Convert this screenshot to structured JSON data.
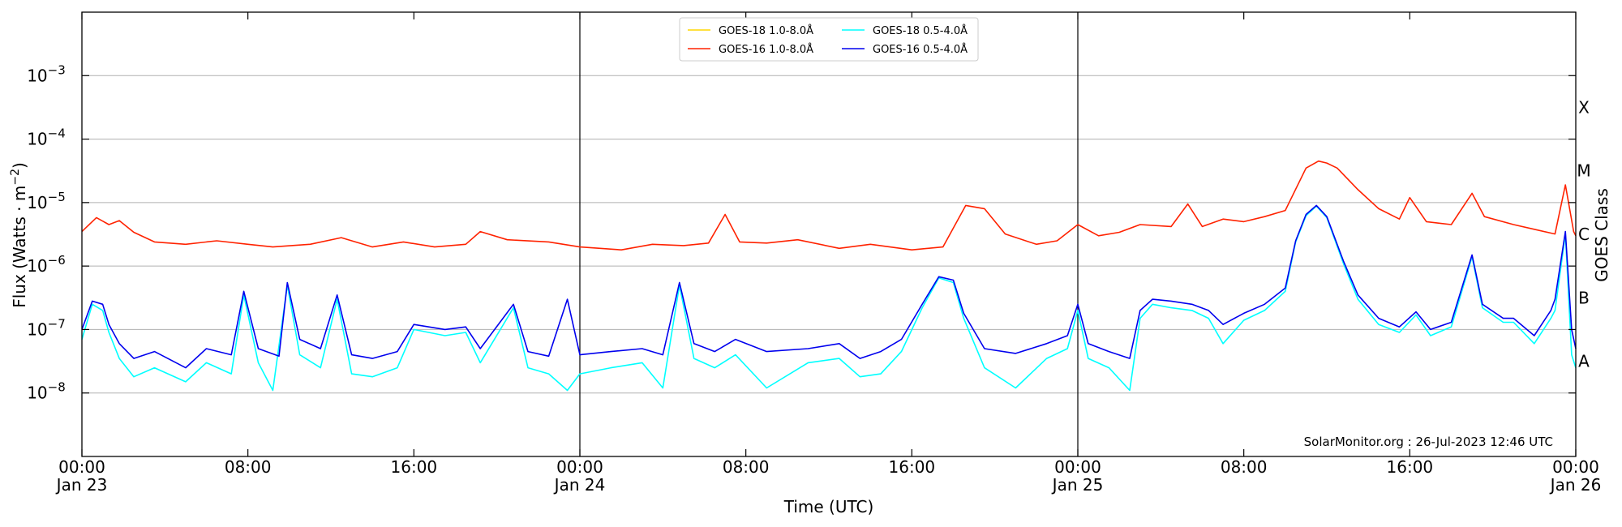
{
  "chart_data": {
    "type": "line",
    "xlabel": "Time (UTC)",
    "ylabel_base": "Flux (Watts · m",
    "ylabel_exp": "−2",
    "ylabel_close": ")",
    "right_label": "GOES Class",
    "credit": "SolarMonitor.org : 26-Jul-2023 12:46 UTC",
    "yscale": "log",
    "x_range_hours": [
      0,
      72
    ],
    "ylim_exp": [
      -9,
      -2
    ],
    "y_ticks": [
      {
        "exp": -8,
        "base": "10",
        "sup": "−8"
      },
      {
        "exp": -7,
        "base": "10",
        "sup": "−7"
      },
      {
        "exp": -6,
        "base": "10",
        "sup": "−6"
      },
      {
        "exp": -5,
        "base": "10",
        "sup": "−5"
      },
      {
        "exp": -4,
        "base": "10",
        "sup": "−4"
      },
      {
        "exp": -3,
        "base": "10",
        "sup": "−3"
      }
    ],
    "x_ticks": [
      {
        "hour": 0,
        "line1": "00:00",
        "line2": "Jan 23"
      },
      {
        "hour": 8,
        "line1": "08:00",
        "line2": ""
      },
      {
        "hour": 16,
        "line1": "16:00",
        "line2": ""
      },
      {
        "hour": 24,
        "line1": "00:00",
        "line2": "Jan 24"
      },
      {
        "hour": 32,
        "line1": "08:00",
        "line2": ""
      },
      {
        "hour": 40,
        "line1": "16:00",
        "line2": ""
      },
      {
        "hour": 48,
        "line1": "00:00",
        "line2": "Jan 25"
      },
      {
        "hour": 56,
        "line1": "08:00",
        "line2": ""
      },
      {
        "hour": 64,
        "line1": "16:00",
        "line2": ""
      },
      {
        "hour": 72,
        "line1": "00:00",
        "line2": "Jan 26"
      }
    ],
    "day_boundaries_hours": [
      24,
      48
    ],
    "goes_classes": [
      {
        "label": "A",
        "exp": -7.5
      },
      {
        "label": "B",
        "exp": -6.5
      },
      {
        "label": "C",
        "exp": -5.5
      },
      {
        "label": "M",
        "exp": -4.5
      },
      {
        "label": "X",
        "exp": -3.5
      }
    ],
    "legend": {
      "position": "top-center",
      "entries": [
        {
          "name": "GOES-18 1.0-8.0Å",
          "color": "#ffd700"
        },
        {
          "name": "GOES-18 0.5-4.0Å",
          "color": "#00ffff"
        },
        {
          "name": "GOES-16 1.0-8.0Å",
          "color": "#ff2200"
        },
        {
          "name": "GOES-16 0.5-4.0Å",
          "color": "#0000ee"
        }
      ]
    },
    "series": [
      {
        "name": "GOES-16 1.0-8.0Å",
        "color": "#ff2200",
        "points": [
          [
            0,
            3.5e-06
          ],
          [
            0.7,
            5.8e-06
          ],
          [
            1.3,
            4.5e-06
          ],
          [
            1.8,
            5.2e-06
          ],
          [
            2.5,
            3.4e-06
          ],
          [
            3.5,
            2.4e-06
          ],
          [
            5,
            2.2e-06
          ],
          [
            6.5,
            2.5e-06
          ],
          [
            8,
            2.2e-06
          ],
          [
            9.2,
            2e-06
          ],
          [
            11,
            2.2e-06
          ],
          [
            12.5,
            2.8e-06
          ],
          [
            14,
            2e-06
          ],
          [
            15.5,
            2.4e-06
          ],
          [
            17,
            2e-06
          ],
          [
            18.5,
            2.2e-06
          ],
          [
            19.2,
            3.5e-06
          ],
          [
            20.5,
            2.6e-06
          ],
          [
            22.5,
            2.4e-06
          ],
          [
            24,
            2e-06
          ],
          [
            26,
            1.8e-06
          ],
          [
            27.5,
            2.2e-06
          ],
          [
            29,
            2.1e-06
          ],
          [
            30.2,
            2.3e-06
          ],
          [
            31.0,
            6.5e-06
          ],
          [
            31.7,
            2.4e-06
          ],
          [
            33,
            2.3e-06
          ],
          [
            34.5,
            2.6e-06
          ],
          [
            36.5,
            1.9e-06
          ],
          [
            38,
            2.2e-06
          ],
          [
            40,
            1.8e-06
          ],
          [
            41.5,
            2e-06
          ],
          [
            42.6,
            9e-06
          ],
          [
            43.5,
            8e-06
          ],
          [
            44.5,
            3.2e-06
          ],
          [
            46,
            2.2e-06
          ],
          [
            47,
            2.5e-06
          ],
          [
            48.0,
            4.5e-06
          ],
          [
            49,
            3e-06
          ],
          [
            50,
            3.4e-06
          ],
          [
            51,
            4.5e-06
          ],
          [
            52.5,
            4.2e-06
          ],
          [
            53.3,
            9.5e-06
          ],
          [
            54,
            4.2e-06
          ],
          [
            55,
            5.5e-06
          ],
          [
            56,
            5e-06
          ],
          [
            57,
            6e-06
          ],
          [
            58,
            7.5e-06
          ],
          [
            59,
            3.5e-05
          ],
          [
            59.6,
            4.5e-05
          ],
          [
            60,
            4.2e-05
          ],
          [
            60.5,
            3.5e-05
          ],
          [
            61.5,
            1.6e-05
          ],
          [
            62.5,
            8e-06
          ],
          [
            63.5,
            5.5e-06
          ],
          [
            64,
            1.2e-05
          ],
          [
            64.8,
            5e-06
          ],
          [
            66,
            4.5e-06
          ],
          [
            67,
            1.4e-05
          ],
          [
            67.6,
            6e-06
          ],
          [
            69,
            4.5e-06
          ],
          [
            70,
            3.8e-06
          ],
          [
            71,
            3.2e-06
          ],
          [
            71.5,
            1.9e-05
          ],
          [
            71.9,
            3.5e-06
          ],
          [
            72,
            3e-06
          ]
        ]
      },
      {
        "name": "GOES-16 0.5-4.0Å",
        "color": "#0000ee",
        "points": [
          [
            0,
            1e-07
          ],
          [
            0.5,
            2.8e-07
          ],
          [
            1,
            2.5e-07
          ],
          [
            1.3,
            1.2e-07
          ],
          [
            1.8,
            6e-08
          ],
          [
            2.5,
            3.5e-08
          ],
          [
            3.5,
            4.5e-08
          ],
          [
            5,
            2.5e-08
          ],
          [
            6,
            5e-08
          ],
          [
            7.2,
            4e-08
          ],
          [
            7.8,
            4e-07
          ],
          [
            8.5,
            5e-08
          ],
          [
            9.5,
            3.8e-08
          ],
          [
            9.9,
            5.5e-07
          ],
          [
            10.5,
            7e-08
          ],
          [
            11.5,
            5e-08
          ],
          [
            12.3,
            3.5e-07
          ],
          [
            13,
            4e-08
          ],
          [
            14,
            3.5e-08
          ],
          [
            15.2,
            4.5e-08
          ],
          [
            16,
            1.2e-07
          ],
          [
            17.5,
            1e-07
          ],
          [
            18.5,
            1.1e-07
          ],
          [
            19.2,
            5e-08
          ],
          [
            20.8,
            2.5e-07
          ],
          [
            21.5,
            4.5e-08
          ],
          [
            22.5,
            3.8e-08
          ],
          [
            23.4,
            3e-07
          ],
          [
            24,
            4e-08
          ],
          [
            25.5,
            4.5e-08
          ],
          [
            27,
            5e-08
          ],
          [
            28,
            4e-08
          ],
          [
            28.8,
            5.5e-07
          ],
          [
            29.5,
            6e-08
          ],
          [
            30.5,
            4.5e-08
          ],
          [
            31.5,
            7e-08
          ],
          [
            33,
            4.5e-08
          ],
          [
            35,
            5e-08
          ],
          [
            36.5,
            6e-08
          ],
          [
            37.5,
            3.5e-08
          ],
          [
            38.5,
            4.5e-08
          ],
          [
            39.5,
            7e-08
          ],
          [
            40.5,
            2.5e-07
          ],
          [
            41.3,
            6.8e-07
          ],
          [
            42,
            6e-07
          ],
          [
            42.5,
            1.8e-07
          ],
          [
            43.5,
            5e-08
          ],
          [
            45,
            4.2e-08
          ],
          [
            46.5,
            6e-08
          ],
          [
            47.5,
            8e-08
          ],
          [
            48,
            2.5e-07
          ],
          [
            48.5,
            6e-08
          ],
          [
            49.5,
            4.5e-08
          ],
          [
            50.5,
            3.5e-08
          ],
          [
            51,
            2e-07
          ],
          [
            51.6,
            3e-07
          ],
          [
            52.5,
            2.8e-07
          ],
          [
            53.5,
            2.5e-07
          ],
          [
            54.3,
            2e-07
          ],
          [
            55.0,
            1.2e-07
          ],
          [
            56,
            1.8e-07
          ],
          [
            57,
            2.5e-07
          ],
          [
            58,
            4.5e-07
          ],
          [
            58.5,
            2.5e-06
          ],
          [
            59,
            6.5e-06
          ],
          [
            59.5,
            9e-06
          ],
          [
            60,
            6e-06
          ],
          [
            60.8,
            1.2e-06
          ],
          [
            61.5,
            3.5e-07
          ],
          [
            62.5,
            1.5e-07
          ],
          [
            63.5,
            1.1e-07
          ],
          [
            64.3,
            1.9e-07
          ],
          [
            65,
            1e-07
          ],
          [
            66,
            1.3e-07
          ],
          [
            67,
            1.5e-06
          ],
          [
            67.5,
            2.5e-07
          ],
          [
            68.5,
            1.5e-07
          ],
          [
            69,
            1.5e-07
          ],
          [
            70,
            8e-08
          ],
          [
            70.8,
            2e-07
          ],
          [
            71,
            3e-07
          ],
          [
            71.5,
            3.5e-06
          ],
          [
            71.8,
            1e-07
          ],
          [
            72,
            5e-08
          ]
        ]
      },
      {
        "name": "GOES-18 0.5-4.0Å",
        "color": "#00ffff",
        "points": [
          [
            0,
            7e-08
          ],
          [
            0.5,
            2.5e-07
          ],
          [
            1,
            2e-07
          ],
          [
            1.3,
            9e-08
          ],
          [
            1.8,
            3.5e-08
          ],
          [
            2.5,
            1.8e-08
          ],
          [
            3.5,
            2.5e-08
          ],
          [
            5,
            1.5e-08
          ],
          [
            6,
            3e-08
          ],
          [
            7.2,
            2e-08
          ],
          [
            7.8,
            3.5e-07
          ],
          [
            8.5,
            3e-08
          ],
          [
            9.2,
            1.1e-08
          ],
          [
            9.9,
            5e-07
          ],
          [
            10.5,
            4e-08
          ],
          [
            11.5,
            2.5e-08
          ],
          [
            12.3,
            3e-07
          ],
          [
            13,
            2e-08
          ],
          [
            14,
            1.8e-08
          ],
          [
            15.2,
            2.5e-08
          ],
          [
            16,
            1e-07
          ],
          [
            17.5,
            8e-08
          ],
          [
            18.5,
            9e-08
          ],
          [
            19.2,
            3e-08
          ],
          [
            20.8,
            2.2e-07
          ],
          [
            21.5,
            2.5e-08
          ],
          [
            22.5,
            2e-08
          ],
          [
            23.4,
            1.1e-08
          ],
          [
            24,
            2e-08
          ],
          [
            25.5,
            2.5e-08
          ],
          [
            27,
            3e-08
          ],
          [
            28,
            1.2e-08
          ],
          [
            28.8,
            5e-07
          ],
          [
            29.5,
            3.5e-08
          ],
          [
            30.5,
            2.5e-08
          ],
          [
            31.5,
            4e-08
          ],
          [
            33,
            1.2e-08
          ],
          [
            35,
            3e-08
          ],
          [
            36.5,
            3.5e-08
          ],
          [
            37.5,
            1.8e-08
          ],
          [
            38.5,
            2e-08
          ],
          [
            39.5,
            4.5e-08
          ],
          [
            40.5,
            2.2e-07
          ],
          [
            41.3,
            6.5e-07
          ],
          [
            42,
            5.5e-07
          ],
          [
            42.5,
            1.5e-07
          ],
          [
            43.5,
            2.5e-08
          ],
          [
            45,
            1.2e-08
          ],
          [
            46.5,
            3.5e-08
          ],
          [
            47.5,
            5e-08
          ],
          [
            48,
            2e-07
          ],
          [
            48.5,
            3.5e-08
          ],
          [
            49.5,
            2.5e-08
          ],
          [
            50.5,
            1.1e-08
          ],
          [
            51,
            1.5e-07
          ],
          [
            51.6,
            2.5e-07
          ],
          [
            52.5,
            2.2e-07
          ],
          [
            53.5,
            2e-07
          ],
          [
            54.3,
            1.5e-07
          ],
          [
            55.0,
            6e-08
          ],
          [
            56,
            1.4e-07
          ],
          [
            57,
            2e-07
          ],
          [
            58,
            4e-07
          ],
          [
            58.5,
            2.4e-06
          ],
          [
            59,
            6.2e-06
          ],
          [
            59.5,
            8.8e-06
          ],
          [
            60,
            5.8e-06
          ],
          [
            60.8,
            1.1e-06
          ],
          [
            61.5,
            3e-07
          ],
          [
            62.5,
            1.2e-07
          ],
          [
            63.5,
            9e-08
          ],
          [
            64.3,
            1.7e-07
          ],
          [
            65,
            8e-08
          ],
          [
            66,
            1.1e-07
          ],
          [
            67,
            1.4e-06
          ],
          [
            67.5,
            2.2e-07
          ],
          [
            68.5,
            1.3e-07
          ],
          [
            69,
            1.3e-07
          ],
          [
            70,
            6e-08
          ],
          [
            70.8,
            1.5e-07
          ],
          [
            71,
            2e-07
          ],
          [
            71.5,
            3.2e-06
          ],
          [
            71.8,
            4e-08
          ],
          [
            72,
            2.5e-08
          ]
        ]
      }
    ]
  }
}
